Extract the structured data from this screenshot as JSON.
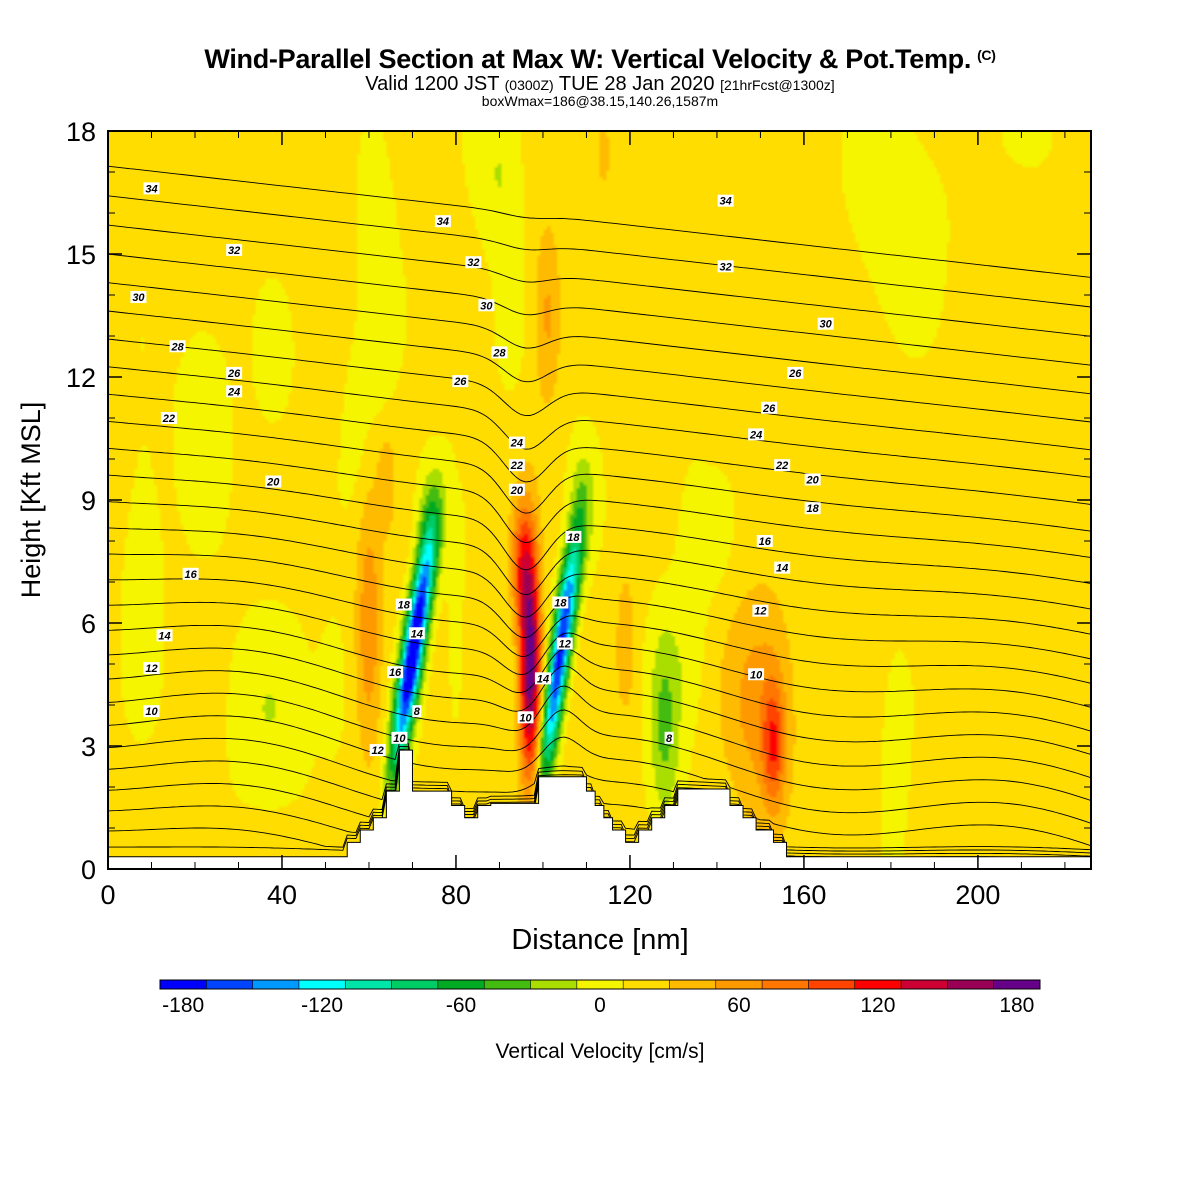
{
  "title": {
    "main": "Wind-Parallel Section at Max W: Vertical Velocity & Pot.Temp.",
    "units": "(C)",
    "valid_pre": "Valid 1200 JST",
    "valid_utc": "(0300Z)",
    "valid_date": "TUE 28 Jan 2020",
    "forecast": "[21hrFcst@1300z]",
    "box": "boxWmax=186@38.15,140.26,1587m"
  },
  "chart_data": {
    "type": "heatmap",
    "xlabel": "Distance [nm]",
    "ylabel": "Height [Kft MSL]",
    "xlim": [
      0,
      226
    ],
    "ylim": [
      0,
      18
    ],
    "x_ticks": [
      0,
      40,
      80,
      120,
      160,
      200
    ],
    "y_ticks": [
      0,
      3,
      6,
      9,
      12,
      15,
      18
    ],
    "colorbar": {
      "label": "Vertical Velocity [cm/s]",
      "min": -200,
      "max": 200,
      "step": 20,
      "tick_values": [
        -180,
        -120,
        -60,
        0,
        60,
        120,
        180
      ],
      "tick_labels": [
        "-180",
        "-120",
        "-60",
        "0",
        "60",
        "120",
        "180"
      ],
      "colors": [
        "#0000ff",
        "#0044ff",
        "#0099ff",
        "#00ffff",
        "#00e5a8",
        "#00cc66",
        "#00aa22",
        "#44bb11",
        "#aadd00",
        "#f5f500",
        "#ffdd00",
        "#ffbb00",
        "#ff9900",
        "#ff7700",
        "#ff4400",
        "#ff0000",
        "#cc0033",
        "#990055",
        "#660088"
      ]
    },
    "terrain": {
      "x": [
        0,
        55,
        55,
        58,
        58,
        61,
        61,
        64,
        64,
        67,
        67,
        70,
        70,
        79,
        79,
        82,
        82,
        85,
        85,
        88,
        88,
        99,
        99,
        110,
        110,
        112,
        112,
        114,
        114,
        116,
        116,
        119,
        119,
        122,
        122,
        125,
        125,
        128,
        128,
        131,
        131,
        143,
        143,
        146,
        146,
        149,
        149,
        153,
        153,
        156,
        156,
        159,
        159,
        162,
        162,
        226
      ],
      "y": [
        0.3,
        0.3,
        0.65,
        0.65,
        0.95,
        0.95,
        1.25,
        1.25,
        1.9,
        1.9,
        2.9,
        2.9,
        1.9,
        1.9,
        1.55,
        1.55,
        1.25,
        1.25,
        1.55,
        1.55,
        1.6,
        1.6,
        2.25,
        2.25,
        1.9,
        1.9,
        1.55,
        1.55,
        1.25,
        1.25,
        0.95,
        0.95,
        0.65,
        0.65,
        0.95,
        0.95,
        1.25,
        1.25,
        1.55,
        1.55,
        1.95,
        1.95,
        1.55,
        1.55,
        1.25,
        1.25,
        0.95,
        0.95,
        0.65,
        0.65,
        0.3,
        0.3,
        0.3,
        0.3,
        0.3,
        0.3
      ]
    },
    "w_features": [
      {
        "cx": 22,
        "cy": 11,
        "rx": 6,
        "ry": 2.5,
        "w": -18
      },
      {
        "cx": 8,
        "cy": 7.5,
        "rx": 5,
        "ry": 3.5,
        "w": -14
      },
      {
        "cx": 37,
        "cy": 3.8,
        "rx": 9,
        "ry": 2.2,
        "w": -22
      },
      {
        "cx": 52,
        "cy": 4.5,
        "rx": 4,
        "ry": 1.8,
        "w": -14
      },
      {
        "cx": 38,
        "cy": 12.3,
        "rx": 4,
        "ry": 1.5,
        "w": -14
      },
      {
        "cx": 62,
        "cy": 14.5,
        "rx": 4,
        "ry": 3.5,
        "w": -22
      },
      {
        "cx": 57,
        "cy": 11,
        "rx": 3,
        "ry": 2,
        "w": -14
      },
      {
        "cx": 60,
        "cy": 6.0,
        "rx": 3,
        "ry": 3.2,
        "w": 50
      },
      {
        "cx": 64,
        "cy": 9.5,
        "rx": 2,
        "ry": 1.2,
        "w": 30
      },
      {
        "cx": 69,
        "cy": 4.5,
        "rx": 2.5,
        "ry": 2.3,
        "w": -170,
        "tilt": 0.35
      },
      {
        "cx": 72,
        "cy": 6.7,
        "rx": 2.5,
        "ry": 2.0,
        "w": -110,
        "tilt": 0.35
      },
      {
        "cx": 74,
        "cy": 8.5,
        "rx": 3,
        "ry": 1.4,
        "w": -40
      },
      {
        "cx": 80,
        "cy": 5.5,
        "rx": 2,
        "ry": 2.5,
        "w": -14
      },
      {
        "cx": 90,
        "cy": 17,
        "rx": 5,
        "ry": 2,
        "w": -25
      },
      {
        "cx": 92,
        "cy": 13.8,
        "rx": 3,
        "ry": 1.8,
        "w": -18
      },
      {
        "cx": 97,
        "cy": 5.0,
        "rx": 2.4,
        "ry": 2.8,
        "w": 175
      },
      {
        "cx": 95,
        "cy": 7.5,
        "rx": 2.5,
        "ry": 1.5,
        "w": 70
      },
      {
        "cx": 103,
        "cy": 4.5,
        "rx": 2.2,
        "ry": 2.5,
        "w": -160,
        "tilt": 0.3
      },
      {
        "cx": 106,
        "cy": 6.8,
        "rx": 2.5,
        "ry": 1.8,
        "w": -90,
        "tilt": 0.3
      },
      {
        "cx": 109,
        "cy": 9.0,
        "rx": 3,
        "ry": 1.5,
        "w": -30
      },
      {
        "cx": 101,
        "cy": 13.5,
        "rx": 3,
        "ry": 2.2,
        "w": 40
      },
      {
        "cx": 114,
        "cy": 17.5,
        "rx": 1.5,
        "ry": 1,
        "w": 30
      },
      {
        "cx": 119,
        "cy": 5.5,
        "rx": 2.2,
        "ry": 1.8,
        "w": 30
      },
      {
        "cx": 128,
        "cy": 3.5,
        "rx": 3.5,
        "ry": 2.5,
        "w": -50
      },
      {
        "cx": 134,
        "cy": 6.5,
        "rx": 3.5,
        "ry": 2.8,
        "w": -22
      },
      {
        "cx": 139,
        "cy": 8.0,
        "rx": 4,
        "ry": 1.2,
        "w": -18
      },
      {
        "cx": 150,
        "cy": 4.0,
        "rx": 8,
        "ry": 2.8,
        "w": 45
      },
      {
        "cx": 153,
        "cy": 3.0,
        "rx": 2.5,
        "ry": 1.5,
        "w": 70
      },
      {
        "cx": 182,
        "cy": 16.0,
        "rx": 10,
        "ry": 2.5,
        "w": -18
      },
      {
        "cx": 181,
        "cy": 2.2,
        "rx": 3,
        "ry": 2.5,
        "w": -18
      },
      {
        "cx": 213,
        "cy": 17.8,
        "rx": 5,
        "ry": 0.7,
        "w": -18
      }
    ],
    "theta_contours": {
      "levels": [
        8,
        9,
        10,
        11,
        12,
        13,
        14,
        15,
        16,
        17,
        18,
        19,
        20,
        21,
        22,
        23,
        24,
        25,
        26,
        27,
        28,
        29,
        30,
        31,
        32,
        33,
        34,
        35
      ],
      "labels": [
        {
          "x": 10,
          "y": 16.6,
          "v": "34"
        },
        {
          "x": 77,
          "y": 15.8,
          "v": "34"
        },
        {
          "x": 142,
          "y": 16.3,
          "v": "34"
        },
        {
          "x": 29,
          "y": 15.1,
          "v": "32"
        },
        {
          "x": 84,
          "y": 14.8,
          "v": "32"
        },
        {
          "x": 142,
          "y": 14.7,
          "v": "32"
        },
        {
          "x": 7,
          "y": 13.95,
          "v": "30"
        },
        {
          "x": 87,
          "y": 13.75,
          "v": "30"
        },
        {
          "x": 165,
          "y": 13.3,
          "v": "30"
        },
        {
          "x": 16,
          "y": 12.75,
          "v": "28"
        },
        {
          "x": 90,
          "y": 12.6,
          "v": "28"
        },
        {
          "x": 29,
          "y": 12.1,
          "v": "26"
        },
        {
          "x": 81,
          "y": 11.9,
          "v": "26"
        },
        {
          "x": 158,
          "y": 12.1,
          "v": "26"
        },
        {
          "x": 29,
          "y": 11.65,
          "v": "24"
        },
        {
          "x": 152,
          "y": 11.25,
          "v": "26"
        },
        {
          "x": 14,
          "y": 11.0,
          "v": "22"
        },
        {
          "x": 94,
          "y": 10.4,
          "v": "24"
        },
        {
          "x": 149,
          "y": 10.6,
          "v": "24"
        },
        {
          "x": 94,
          "y": 9.85,
          "v": "22"
        },
        {
          "x": 155,
          "y": 9.85,
          "v": "22"
        },
        {
          "x": 38,
          "y": 9.45,
          "v": "20"
        },
        {
          "x": 94,
          "y": 9.25,
          "v": "20"
        },
        {
          "x": 162,
          "y": 9.5,
          "v": "20"
        },
        {
          "x": 162,
          "y": 8.8,
          "v": "18"
        },
        {
          "x": 107,
          "y": 8.1,
          "v": "18"
        },
        {
          "x": 151,
          "y": 8.0,
          "v": "16"
        },
        {
          "x": 19,
          "y": 7.2,
          "v": "16"
        },
        {
          "x": 155,
          "y": 7.35,
          "v": "14"
        },
        {
          "x": 68,
          "y": 6.45,
          "v": "18"
        },
        {
          "x": 104,
          "y": 6.5,
          "v": "18"
        },
        {
          "x": 150,
          "y": 6.3,
          "v": "12"
        },
        {
          "x": 13,
          "y": 5.7,
          "v": "14"
        },
        {
          "x": 71,
          "y": 5.75,
          "v": "14"
        },
        {
          "x": 105,
          "y": 5.5,
          "v": "12"
        },
        {
          "x": 66,
          "y": 4.8,
          "v": "16"
        },
        {
          "x": 10,
          "y": 4.9,
          "v": "12"
        },
        {
          "x": 100,
          "y": 4.65,
          "v": "14"
        },
        {
          "x": 149,
          "y": 4.75,
          "v": "10"
        },
        {
          "x": 10,
          "y": 3.85,
          "v": "10"
        },
        {
          "x": 71,
          "y": 3.85,
          "v": "8"
        },
        {
          "x": 96,
          "y": 3.7,
          "v": "10"
        },
        {
          "x": 67,
          "y": 3.2,
          "v": "10"
        },
        {
          "x": 129,
          "y": 3.2,
          "v": "8"
        },
        {
          "x": 62,
          "y": 2.9,
          "v": "12"
        }
      ]
    }
  }
}
